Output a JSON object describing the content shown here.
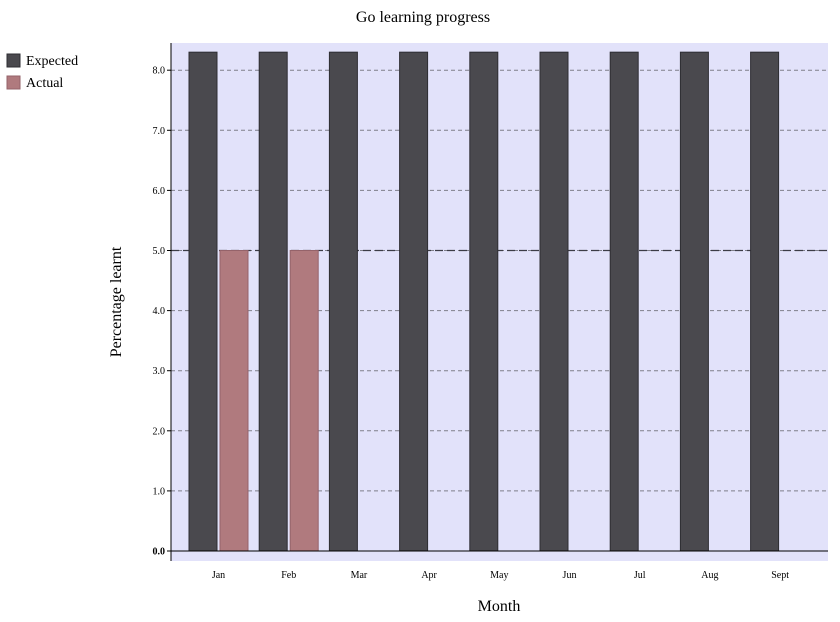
{
  "chart_data": {
    "type": "bar",
    "title": "Go learning progress",
    "xlabel": "Month",
    "ylabel": "Percentage learnt",
    "categories": [
      "Jan",
      "Feb",
      "Mar",
      "Apr",
      "May",
      "Jun",
      "Jul",
      "Aug",
      "Sept"
    ],
    "series": [
      {
        "name": "Expected",
        "color": "#4a494e",
        "values": [
          8.3,
          8.3,
          8.3,
          8.3,
          8.3,
          8.3,
          8.3,
          8.3,
          8.3
        ]
      },
      {
        "name": "Actual",
        "color": "#b07a7e",
        "values": [
          5.0,
          5.0,
          null,
          null,
          null,
          null,
          null,
          null,
          null
        ]
      }
    ],
    "yticks": [
      "0.0",
      "1.0",
      "2.0",
      "3.0",
      "4.0",
      "5.0",
      "6.0",
      "7.0",
      "8.0"
    ],
    "ylim": [
      -0.2,
      8.45
    ],
    "grid": true,
    "reference_line": 5.0,
    "legend_position": "left",
    "plot_background": "#e2e2fa"
  }
}
